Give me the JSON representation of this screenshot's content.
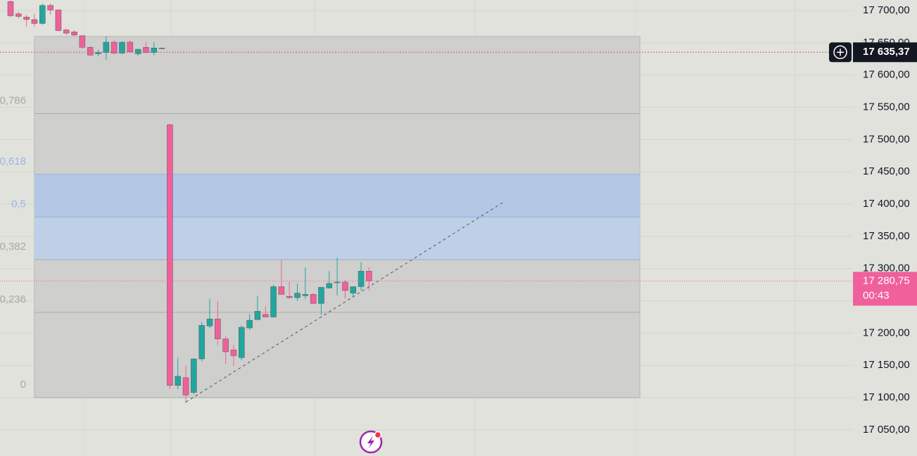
{
  "chart_data": {
    "type": "candlestick",
    "up_color": "#22a6a0",
    "down_color": "#f0609a",
    "open": [
      17714,
      17695,
      17690,
      17686,
      17680,
      17708,
      17701,
      17670,
      17667,
      17661,
      17643,
      17633,
      17635,
      17651,
      17634,
      17651,
      17633,
      17643,
      17635,
      17641,
      17523,
      17119,
      17131,
      17108,
      17160,
      17211,
      17222,
      17191,
      17174,
      17162,
      17208,
      17221,
      17229,
      17225,
      17272,
      17257,
      17255,
      17258,
      17260,
      17246,
      17270,
      17278,
      17279,
      17262,
      17272,
      17296
    ],
    "high": [
      17716,
      17698,
      17693,
      17695,
      17711,
      17711,
      17702,
      17672,
      17670,
      17662,
      17645,
      17639,
      17660,
      17654,
      17652,
      17654,
      17641,
      17651,
      17651,
      17642,
      17525,
      17162,
      17149,
      17161,
      17217,
      17253,
      17250,
      17195,
      17182,
      17212,
      17230,
      17258,
      17241,
      17275,
      17313,
      17280,
      17277,
      17302,
      17262,
      17271,
      17296,
      17317,
      17282,
      17272,
      17310,
      17302
    ],
    "low": [
      17690,
      17688,
      17675,
      17675,
      17678,
      17694,
      17668,
      17662,
      17660,
      17641,
      17630,
      17629,
      17624,
      17632,
      17632,
      17634,
      17630,
      17634,
      17631,
      17640,
      17113,
      17113,
      17092,
      17105,
      17156,
      17208,
      17182,
      17152,
      17149,
      17158,
      17205,
      17220,
      17224,
      17224,
      17260,
      17253,
      17250,
      17253,
      17246,
      17228,
      17269,
      17258,
      17254,
      17256,
      17266,
      17266
    ],
    "close": [
      17692,
      17691,
      17686,
      17680,
      17708,
      17701,
      17669,
      17665,
      17662,
      17643,
      17631,
      17635,
      17651,
      17634,
      17651,
      17636,
      17640,
      17635,
      17642,
      17642,
      17119,
      17133,
      17104,
      17160,
      17212,
      17222,
      17191,
      17171,
      17165,
      17209,
      17220,
      17234,
      17225,
      17272,
      17260,
      17255,
      17262,
      17260,
      17246,
      17271,
      17277,
      17279,
      17266,
      17272,
      17296,
      17281
    ],
    "ylim": [
      17009.5,
      17716.4
    ],
    "yticks": [
      {
        "value": 17050,
        "label": "17 050,00"
      },
      {
        "value": 17100,
        "label": "17 100,00"
      },
      {
        "value": 17150,
        "label": "17 150,00"
      },
      {
        "value": 17200,
        "label": "17 200,00"
      },
      {
        "value": 17250,
        "label": "17 250,00"
      },
      {
        "value": 17300,
        "label": "17 300,00"
      },
      {
        "value": 17350,
        "label": "17 350,00"
      },
      {
        "value": 17400,
        "label": "17 400,00"
      },
      {
        "value": 17450,
        "label": "17 450,00"
      },
      {
        "value": 17500,
        "label": "17 500,00"
      },
      {
        "value": 17550,
        "label": "17 550,00"
      },
      {
        "value": 17600,
        "label": "17 600,00"
      },
      {
        "value": 17650,
        "label": "17 650,00"
      },
      {
        "value": 17700,
        "label": "17 700,00"
      }
    ],
    "fib": {
      "low": 17100,
      "high": 17660,
      "start": 3,
      "end": 79,
      "levels": [
        {
          "value": 0.786,
          "label": "0,786"
        },
        {
          "value": 0.618,
          "label": "0,618"
        },
        {
          "value": 0.5,
          "label": "0,5"
        },
        {
          "value": 0.382,
          "label": "0,382"
        },
        {
          "value": 0.236,
          "label": "0,236"
        },
        0
      ]
    },
    "trendline": {
      "x": [
        22,
        62
      ],
      "y": [
        17093,
        17404
      ]
    },
    "crosshair_price": {
      "value": 17635.37,
      "label": "17 635,37"
    },
    "last_price": {
      "value": 17280.75,
      "label": "17 280,75"
    },
    "countdown": "00:43"
  }
}
